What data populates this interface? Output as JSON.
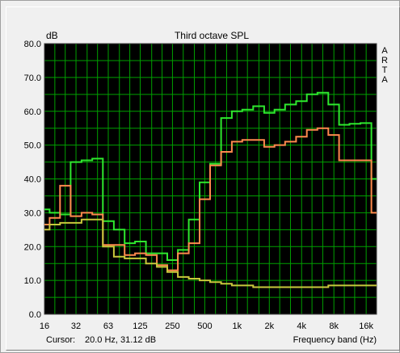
{
  "chart_data": {
    "type": "line",
    "title": "Third octave SPL",
    "ylabel": "dB",
    "xlabel": "Frequency band (Hz)",
    "side_label": [
      "A",
      "R",
      "T",
      "A"
    ],
    "cursor_label": "Cursor:",
    "cursor_value": "20.0 Hz, 31.12 dB",
    "ylim": [
      0,
      80
    ],
    "y_ticks": [
      "0.0",
      "10.0",
      "20.0",
      "30.0",
      "40.0",
      "50.0",
      "60.0",
      "70.0",
      "80.0"
    ],
    "x_ticks": [
      "16",
      "32",
      "63",
      "125",
      "250",
      "500",
      "1k",
      "2k",
      "4k",
      "8k",
      "16k"
    ],
    "bands": [
      16,
      20,
      25,
      31.5,
      40,
      50,
      63,
      80,
      100,
      125,
      160,
      200,
      250,
      315,
      400,
      500,
      630,
      800,
      1000,
      1250,
      1600,
      2000,
      2500,
      3150,
      4000,
      5000,
      6300,
      8000,
      10000,
      12500,
      16000,
      20000
    ],
    "grid": true,
    "series": [
      {
        "color": "#2ee82e",
        "values": [
          31,
          30,
          29.5,
          45,
          45.5,
          46,
          27.5,
          25,
          21,
          21.5,
          18,
          18,
          16,
          19,
          28,
          39,
          44.5,
          58,
          60,
          60.5,
          61.5,
          59.5,
          60.5,
          62,
          63,
          65,
          65.5,
          62,
          56,
          56.3,
          56.5,
          40
        ]
      },
      {
        "color": "#ff8a4d",
        "values": [
          26.5,
          28.5,
          38,
          29,
          30,
          29.5,
          20.5,
          20.5,
          17.5,
          18,
          17.5,
          14.5,
          13,
          18,
          21,
          34,
          44,
          48,
          51,
          51.5,
          51.5,
          49.5,
          50,
          51,
          52.5,
          54.5,
          55,
          53,
          45.5,
          45.5,
          45.5,
          30
        ]
      },
      {
        "color": "#c8c83c",
        "values": [
          25,
          26.5,
          27,
          27,
          28,
          28,
          20,
          17,
          16.5,
          16.5,
          15,
          14,
          12.5,
          11,
          10.5,
          10,
          9.5,
          9,
          8.5,
          8.5,
          8,
          8,
          8,
          8,
          8,
          8,
          8,
          8.5,
          8.5,
          8.5,
          8.5,
          8.5
        ]
      }
    ],
    "colors": {
      "background": "#000000",
      "grid": "#00a000",
      "axes_text": "#000000",
      "window": "#f0f0f0"
    }
  }
}
